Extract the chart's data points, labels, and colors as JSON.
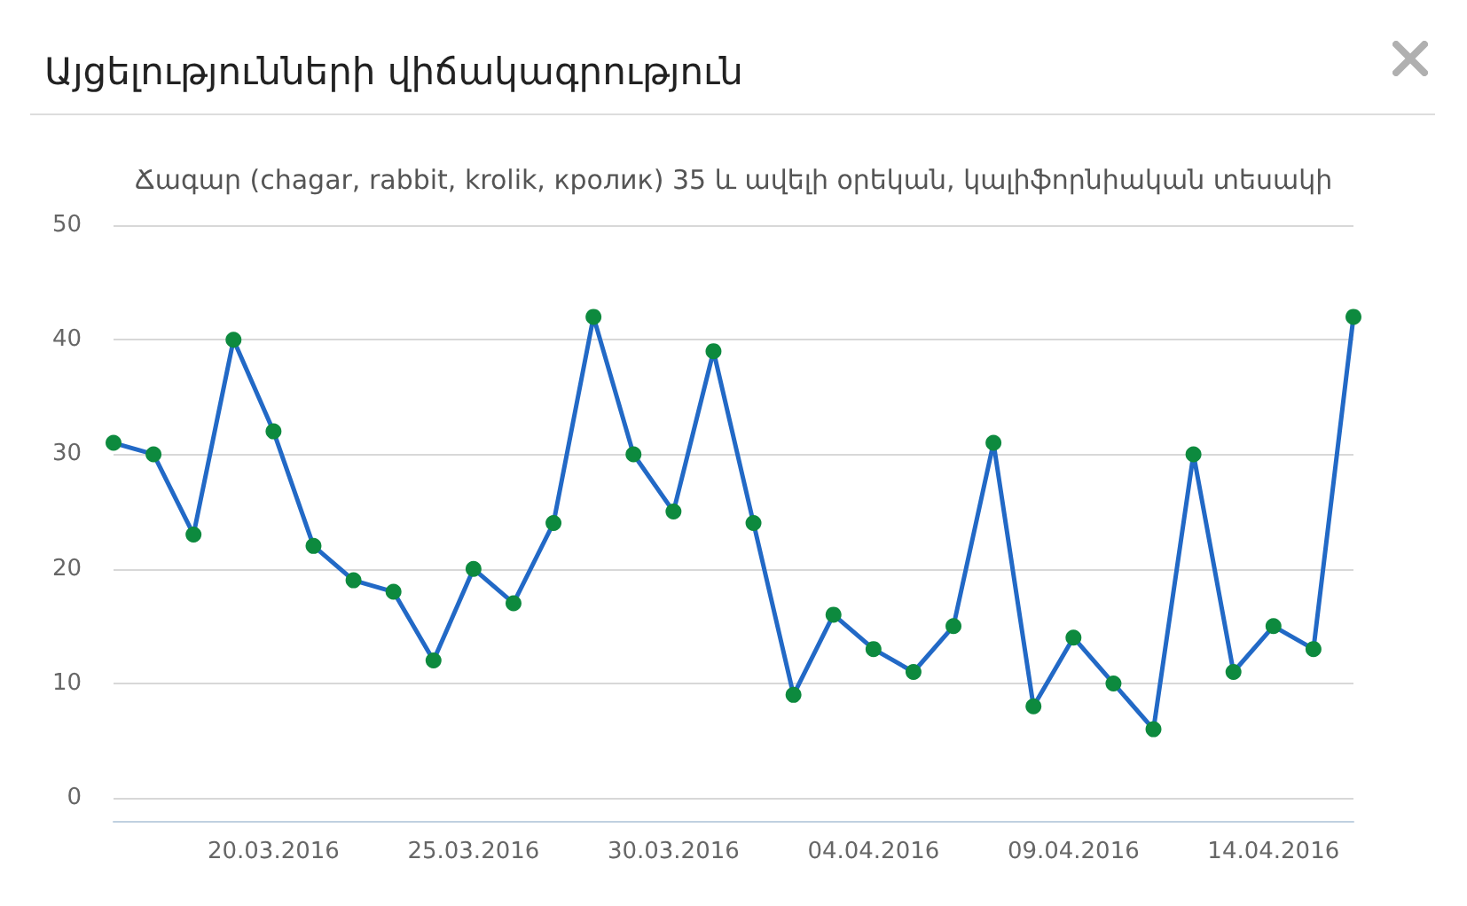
{
  "chart_data": {
    "type": "line",
    "title": "Այցելությունների վիճակագրություն",
    "subtitle": "Ճագար (chagar, rabbit, krolik, кролик) 35 և ավելի օրեկան, կալիֆորնիական տեսակի",
    "x": [
      "2016-03-16",
      "2016-03-17",
      "2016-03-18",
      "2016-03-19",
      "2016-03-20",
      "2016-03-21",
      "2016-03-22",
      "2016-03-23",
      "2016-03-24",
      "2016-03-25",
      "2016-03-26",
      "2016-03-27",
      "2016-03-28",
      "2016-03-29",
      "2016-03-30",
      "2016-03-31",
      "2016-04-01",
      "2016-04-02",
      "2016-04-03",
      "2016-04-04",
      "2016-04-05",
      "2016-04-06",
      "2016-04-07",
      "2016-04-08",
      "2016-04-09",
      "2016-04-10",
      "2016-04-11",
      "2016-04-12",
      "2016-04-13",
      "2016-04-14",
      "2016-04-15",
      "2016-04-16"
    ],
    "series": [
      {
        "color": "#2269c6",
        "colors": [
          "#0d8a3e",
          "#0d8a3e",
          "#0d8a3e",
          "#0d8a3e",
          "#0d8a3e",
          "#0d8a3e",
          "#0d8a3e",
          "#0d8a3e",
          "#0d8a3e",
          "#0d8a3e",
          "#0d8a3e",
          "#0d8a3e",
          "#0d8a3e",
          "#0d8a3e",
          "#0d8a3e",
          "#0d8a3e",
          "#0d8a3e",
          "#0d8a3e",
          "#0d8a3e",
          "#0d8a3e",
          "#0d8a3e",
          "#0d8a3e",
          "#0d8a3e",
          "#0d8a3e",
          "#0d8a3e",
          "#0d8a3e",
          "#0d8a3e",
          "#0d8a3e",
          "#0d8a3e",
          "#0d8a3e",
          "#0d8a3e",
          "#0d8a3e"
        ],
        "values": [
          31,
          30,
          23,
          40,
          32,
          22,
          19,
          18,
          12,
          20,
          17,
          24,
          42,
          30,
          25,
          39,
          24,
          9,
          16,
          13,
          11,
          15,
          31,
          8,
          14,
          10,
          6,
          30,
          11,
          15,
          13,
          42
        ]
      }
    ],
    "xlim": [
      "2016-03-16",
      "2016-04-16"
    ],
    "xticks": [
      {
        "value": "2016-03-20",
        "label": "20.03.2016"
      },
      {
        "value": "2016-03-25",
        "label": "25.03.2016"
      },
      {
        "value": "2016-03-30",
        "label": "30.03.2016"
      },
      {
        "value": "2016-04-04",
        "label": "04.04.2016"
      },
      {
        "value": "2016-04-09",
        "label": "09.04.2016"
      },
      {
        "value": "2016-04-14",
        "label": "14.04.2016"
      }
    ],
    "ylim": [
      -2,
      50
    ],
    "yticks": [
      0,
      10,
      20,
      30,
      40,
      50
    ],
    "grid": "y",
    "marker": "circle",
    "line_style": "solid"
  }
}
